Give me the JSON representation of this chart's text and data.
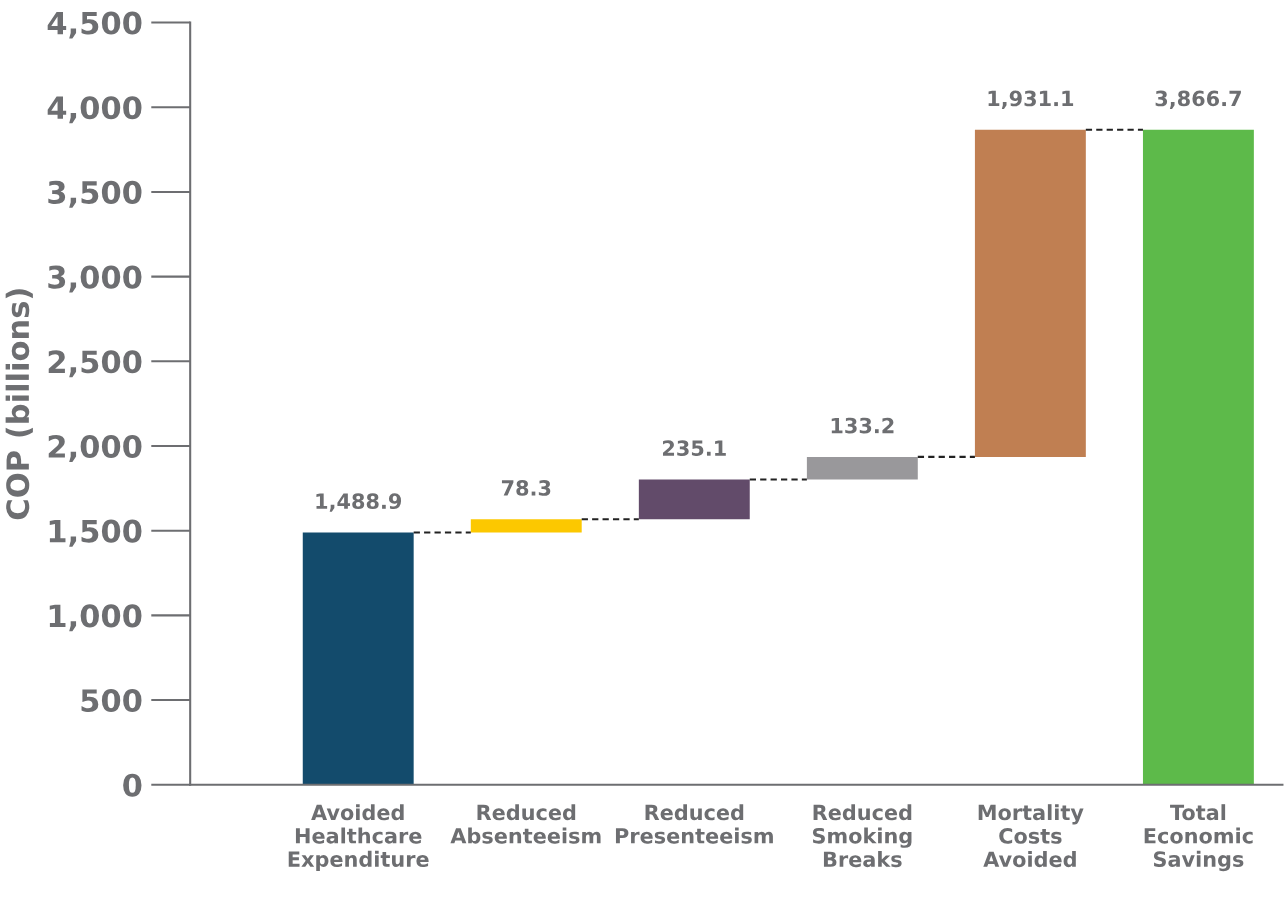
{
  "chart_data": {
    "type": "bar",
    "ylabel": "COP (billions)",
    "categories": [
      "Avoided\nHealthcare\nExpenditure",
      "Reduced\nAbsenteeism",
      "Reduced\nPresenteeism",
      "Reduced\nSmoking\nBreaks",
      "Mortality\nCosts\nAvoided",
      "Total\nEconomic\nSavings"
    ],
    "values": [
      1488.9,
      78.3,
      235.1,
      133.2,
      1931.1,
      3866.7
    ],
    "base": [
      0,
      1488.9,
      1567.2,
      1802.3,
      1935.5,
      0
    ],
    "colors": [
      "#134b6c",
      "#fcc800",
      "#624b6a",
      "#99989b",
      "#c07f52",
      "#5dba4a"
    ],
    "value_labels": [
      "1,488.9",
      "78.3",
      "235.1",
      "133.2",
      "1,931.1",
      "3,866.7"
    ],
    "ylim": [
      0,
      4500
    ],
    "yticks": [
      0,
      {
        "value": 500,
        "label": "500"
      },
      {
        "value": 1000,
        "label": "1,000"
      },
      {
        "value": 1500,
        "label": "1,500"
      },
      {
        "value": 2000,
        "label": "2,000"
      },
      {
        "value": 2500,
        "label": "2,500"
      },
      {
        "value": 3000,
        "label": "3,000"
      },
      {
        "value": 3500,
        "label": "3,500"
      },
      {
        "value": 4000,
        "label": "4,000"
      },
      {
        "value": 4500,
        "label": "4,500"
      }
    ],
    "grid": false
  }
}
